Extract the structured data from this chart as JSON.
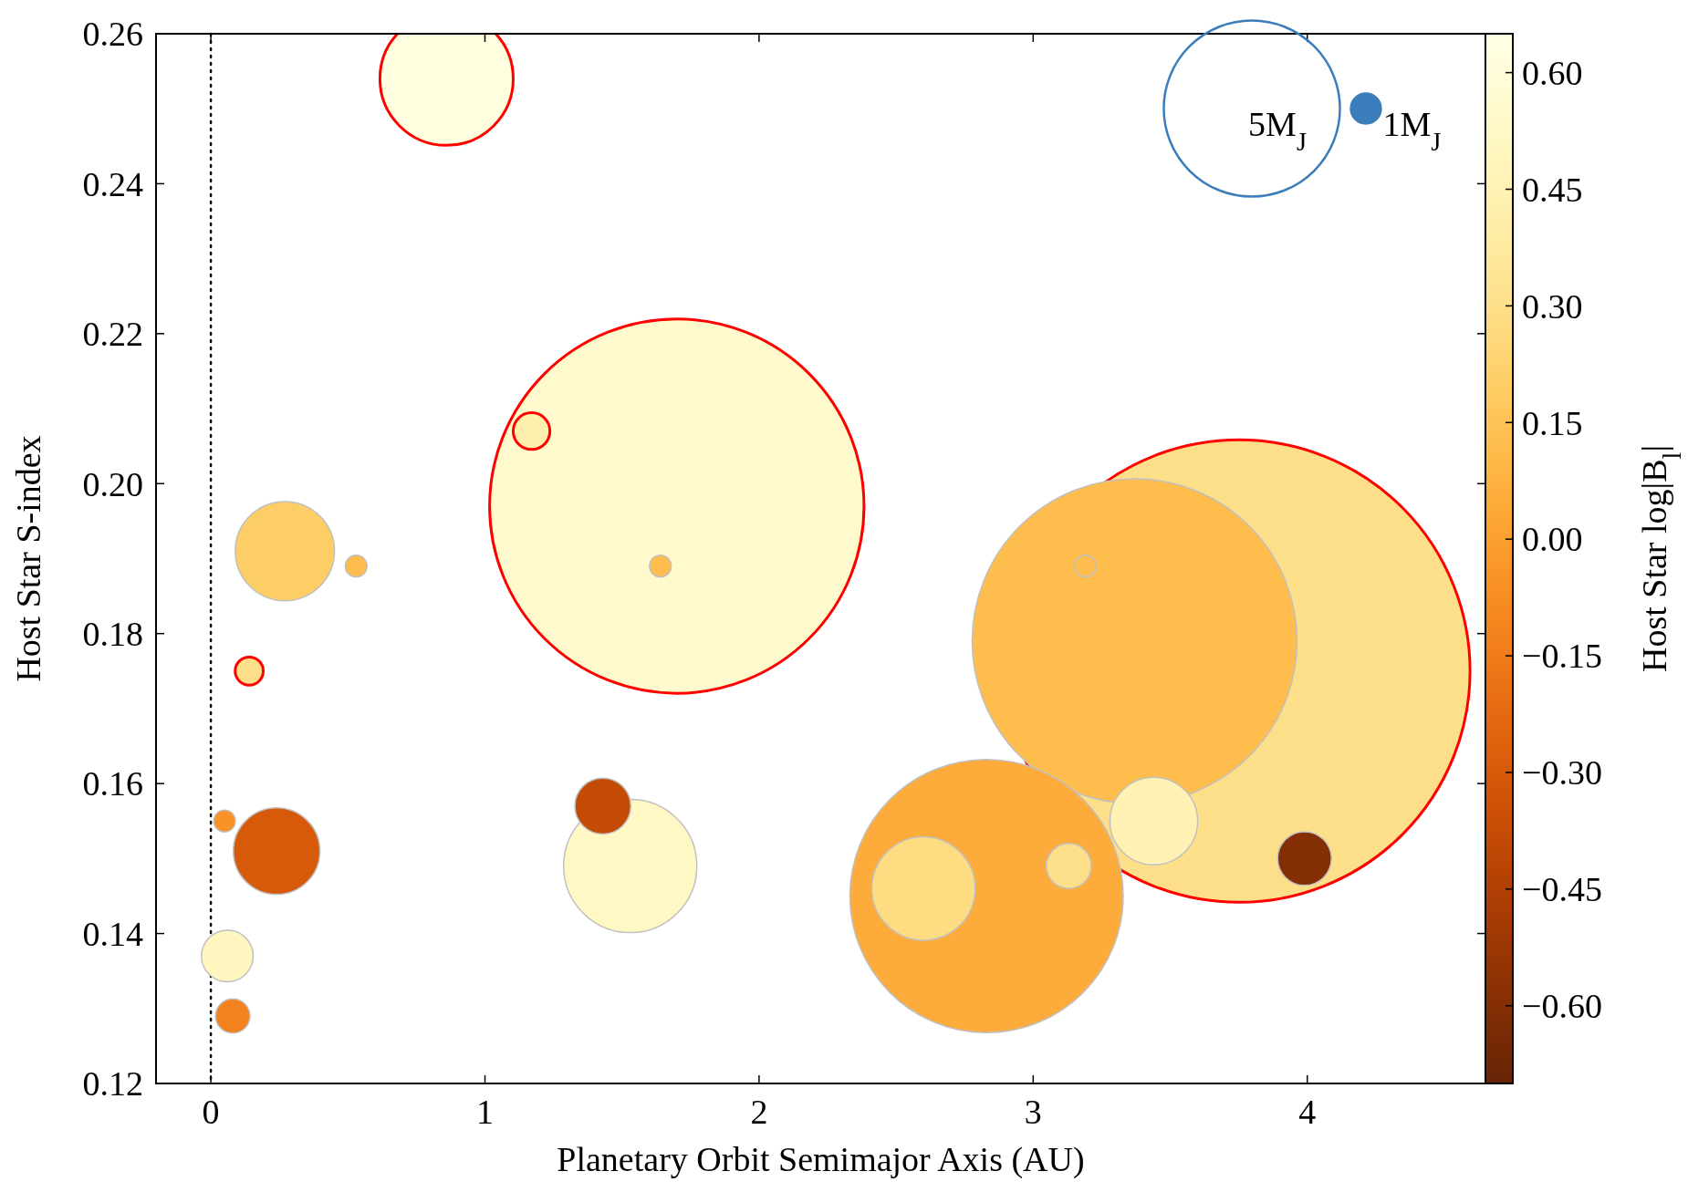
{
  "chart_data": {
    "type": "bubble",
    "xlabel": "Planetary Orbit Semimajor Axis (AU)",
    "ylabel": "Host Star S-index",
    "clabel": "Host Star log|B$_{l}$|",
    "xlim": [
      -0.2,
      4.65
    ],
    "xticks": [
      0,
      1,
      2,
      3,
      4
    ],
    "ylim": [
      0.12,
      0.26
    ],
    "yticks": [
      {
        "value": 0.12,
        "label": "0.12"
      },
      {
        "value": 0.14,
        "label": "0.14"
      },
      {
        "value": 0.16,
        "label": "0.16"
      },
      {
        "value": 0.18,
        "label": "0.18"
      },
      {
        "value": 0.2,
        "label": "0.20"
      },
      {
        "value": 0.22,
        "label": "0.22"
      },
      {
        "value": 0.24,
        "label": "0.24"
      },
      {
        "value": 0.26,
        "label": "0.26"
      }
    ],
    "clim": [
      -0.7,
      0.65
    ],
    "cticks": [
      {
        "value": -0.6,
        "label": "−0.60"
      },
      {
        "value": -0.45,
        "label": "−0.45"
      },
      {
        "value": -0.3,
        "label": "−0.30"
      },
      {
        "value": -0.15,
        "label": "−0.15"
      },
      {
        "value": 0,
        "label": "0.00"
      },
      {
        "value": 0.15,
        "label": "0.15"
      },
      {
        "value": 0.3,
        "label": "0.30"
      },
      {
        "value": 0.45,
        "label": "0.45"
      },
      {
        "value": 0.6,
        "label": "0.60"
      }
    ],
    "size_legend": [
      {
        "value": 0.145,
        "label": "5M$_{J}$"
      },
      {
        "value": 0.0042,
        "label": "1M$_{J}$"
      }
    ],
    "ref_lines": [
      {
        "axis": "x",
        "value": 0,
        "color": "#000000",
        "line_style": "dotted"
      }
    ],
    "grid": false,
    "series": [
      {
        "color": "#ff0000",
        "x": [
          0.86,
          1.7,
          1.17,
          0.14,
          3.75
        ],
        "values": [
          0.254,
          0.197,
          0.207,
          0.175,
          0.175
        ],
        "sizes": [
          0.083,
          0.655,
          0.0063,
          0.0037,
          1
        ],
        "cvalues": [
          0.62,
          0.55,
          0.42,
          0.3,
          0.3
        ]
      },
      {
        "color": "#c0c0c0",
        "x": [
          3.37,
          3.19,
          0.27,
          0.53,
          1.64,
          0.05,
          0.24,
          1.43,
          1.53,
          2.83,
          2.6,
          3.13,
          3.44,
          3.99,
          0.06,
          0.08
        ],
        "values": [
          0.179,
          0.189,
          0.191,
          0.189,
          0.189,
          0.155,
          0.151,
          0.157,
          0.149,
          0.145,
          0.146,
          0.149,
          0.155,
          0.15,
          0.137,
          0.129
        ],
        "sizes": [
          0.493,
          0.0022,
          0.046,
          0.0022,
          0.0022,
          0.0022,
          0.035,
          0.0146,
          0.083,
          0.349,
          0.05,
          0.0095,
          0.036,
          0.0135,
          0.0125,
          0.0055
        ],
        "cvalues": [
          0.12,
          0.12,
          0.2,
          0.12,
          0.12,
          -0.05,
          -0.3,
          -0.38,
          0.52,
          0.05,
          0.28,
          0.3,
          0.45,
          -0.6,
          0.5,
          -0.12
        ]
      }
    ]
  }
}
